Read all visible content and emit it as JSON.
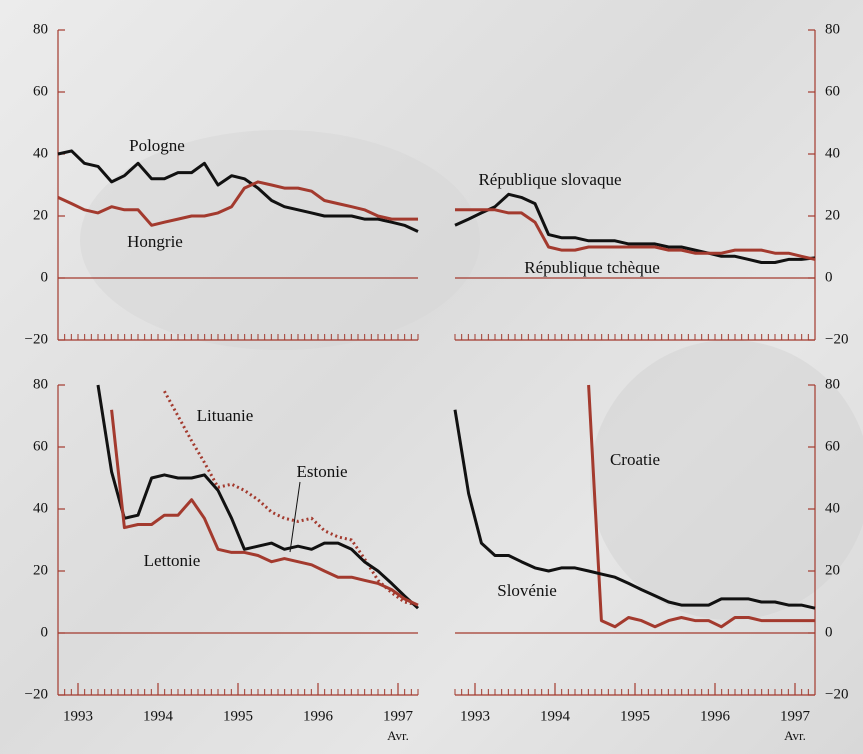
{
  "chart_data": [
    {
      "type": "line",
      "ylim": [
        -20,
        80
      ],
      "yticks": [
        {
          "value": -20,
          "label": "−20"
        },
        0,
        20,
        40,
        60,
        80
      ],
      "xlim": [
        1992.75,
        1997.25
      ],
      "x": [
        1992.75,
        1992.92,
        1993.08,
        1993.25,
        1993.42,
        1993.58,
        1993.75,
        1993.92,
        1994.08,
        1994.25,
        1994.42,
        1994.58,
        1994.75,
        1994.92,
        1995.08,
        1995.25,
        1995.42,
        1995.58,
        1995.75,
        1995.92,
        1996.08,
        1996.25,
        1996.42,
        1996.58,
        1996.75,
        1996.92,
        1997.08,
        1997.25
      ],
      "series": [
        {
          "name": "Pologne",
          "color": "#111111",
          "values": [
            40,
            41,
            37,
            36,
            31,
            33,
            37,
            32,
            32,
            34,
            34,
            37,
            30,
            33,
            32,
            29,
            25,
            23,
            22,
            21,
            20,
            20,
            20,
            19,
            19,
            18,
            17,
            15
          ]
        },
        {
          "name": "Hongrie",
          "color": "#a33a2e",
          "values": [
            26,
            24,
            22,
            21,
            23,
            22,
            22,
            17,
            18,
            19,
            20,
            20,
            21,
            23,
            29,
            31,
            30,
            29,
            29,
            28,
            25,
            24,
            23,
            22,
            20,
            19,
            19,
            19
          ]
        }
      ]
    },
    {
      "type": "line",
      "ylim": [
        -20,
        80
      ],
      "yticks": [
        {
          "value": -20,
          "label": "−20"
        },
        0,
        20,
        40,
        60,
        80
      ],
      "xlim": [
        1992.75,
        1997.25
      ],
      "x": [
        1992.75,
        1992.92,
        1993.08,
        1993.25,
        1993.42,
        1993.58,
        1993.75,
        1993.92,
        1994.08,
        1994.25,
        1994.42,
        1994.58,
        1994.75,
        1994.92,
        1995.08,
        1995.25,
        1995.42,
        1995.58,
        1995.75,
        1995.92,
        1996.08,
        1996.25,
        1996.42,
        1996.58,
        1996.75,
        1996.92,
        1997.08,
        1997.25
      ],
      "series": [
        {
          "name": "République slovaque",
          "color": "#111111",
          "values": [
            17,
            19,
            21,
            23,
            27,
            26,
            24,
            14,
            13,
            13,
            12,
            12,
            12,
            11,
            11,
            11,
            10,
            10,
            9,
            8,
            7,
            7,
            6,
            5,
            5,
            6,
            6,
            6.5
          ]
        },
        {
          "name": "République tchèque",
          "color": "#a33a2e",
          "values": [
            22,
            22,
            22,
            22,
            21,
            21,
            18,
            10,
            9,
            9,
            10,
            10,
            10,
            10,
            10,
            10,
            9,
            9,
            8,
            8,
            8,
            9,
            9,
            9,
            8,
            8,
            7,
            6
          ]
        }
      ]
    },
    {
      "type": "line",
      "ylim": [
        -20,
        80
      ],
      "yticks": [
        {
          "value": -20,
          "label": "−20"
        },
        0,
        20,
        40,
        60,
        80
      ],
      "xlim": [
        1992.75,
        1997.25
      ],
      "xticks": [
        1993,
        1994,
        1995,
        1996,
        1997
      ],
      "x_note": "Avr.",
      "x": [
        1992.75,
        1992.92,
        1993.08,
        1993.25,
        1993.42,
        1993.58,
        1993.75,
        1993.92,
        1994.08,
        1994.25,
        1994.42,
        1994.58,
        1994.75,
        1994.92,
        1995.08,
        1995.25,
        1995.42,
        1995.58,
        1995.75,
        1995.92,
        1996.08,
        1996.25,
        1996.42,
        1996.58,
        1996.75,
        1996.92,
        1997.08,
        1997.25
      ],
      "series": [
        {
          "name": "Lituanie",
          "color": "#a33a2e",
          "style": "dotted",
          "values": [
            null,
            null,
            null,
            null,
            null,
            null,
            null,
            null,
            78,
            70,
            62,
            55,
            47,
            48,
            46,
            43,
            39,
            37,
            36,
            37,
            33,
            31,
            30,
            24,
            17,
            13,
            10,
            9
          ]
        },
        {
          "name": "Estonie",
          "color": "#111111",
          "values": [
            null,
            null,
            null,
            80,
            52,
            37,
            38,
            50,
            51,
            50,
            50,
            51,
            46,
            37,
            27,
            28,
            29,
            27,
            28,
            27,
            29,
            29,
            27,
            23,
            20,
            16,
            12,
            8
          ]
        },
        {
          "name": "Lettonie",
          "color": "#a33a2e",
          "values": [
            null,
            null,
            null,
            null,
            72,
            34,
            35,
            35,
            38,
            38,
            43,
            37,
            27,
            26,
            26,
            25,
            23,
            24,
            23,
            22,
            20,
            18,
            18,
            17,
            16,
            14,
            11,
            9
          ]
        }
      ]
    },
    {
      "type": "line",
      "ylim": [
        -20,
        80
      ],
      "yticks": [
        {
          "value": -20,
          "label": "−20"
        },
        0,
        20,
        40,
        60,
        80
      ],
      "xlim": [
        1992.75,
        1997.25
      ],
      "xticks": [
        1993,
        1994,
        1995,
        1996,
        1997
      ],
      "x_note": "Avr.",
      "x": [
        1992.75,
        1992.92,
        1993.08,
        1993.25,
        1993.42,
        1993.58,
        1993.75,
        1993.92,
        1994.08,
        1994.25,
        1994.42,
        1994.58,
        1994.75,
        1994.92,
        1995.08,
        1995.25,
        1995.42,
        1995.58,
        1995.75,
        1995.92,
        1996.08,
        1996.25,
        1996.42,
        1996.58,
        1996.75,
        1996.92,
        1997.08,
        1997.25
      ],
      "series": [
        {
          "name": "Croatie",
          "color": "#a33a2e",
          "values": [
            null,
            null,
            null,
            null,
            null,
            null,
            null,
            null,
            null,
            null,
            80,
            4,
            2,
            5,
            4,
            2,
            4,
            5,
            4,
            4,
            2,
            5,
            5,
            4,
            4,
            4,
            4,
            4
          ]
        },
        {
          "name": "Slovénie",
          "color": "#111111",
          "values": [
            72,
            45,
            29,
            25,
            25,
            23,
            21,
            20,
            21,
            21,
            20,
            19,
            18,
            16,
            14,
            12,
            10,
            9,
            9,
            9,
            11,
            11,
            11,
            10,
            10,
            9,
            9,
            8
          ]
        }
      ]
    }
  ]
}
